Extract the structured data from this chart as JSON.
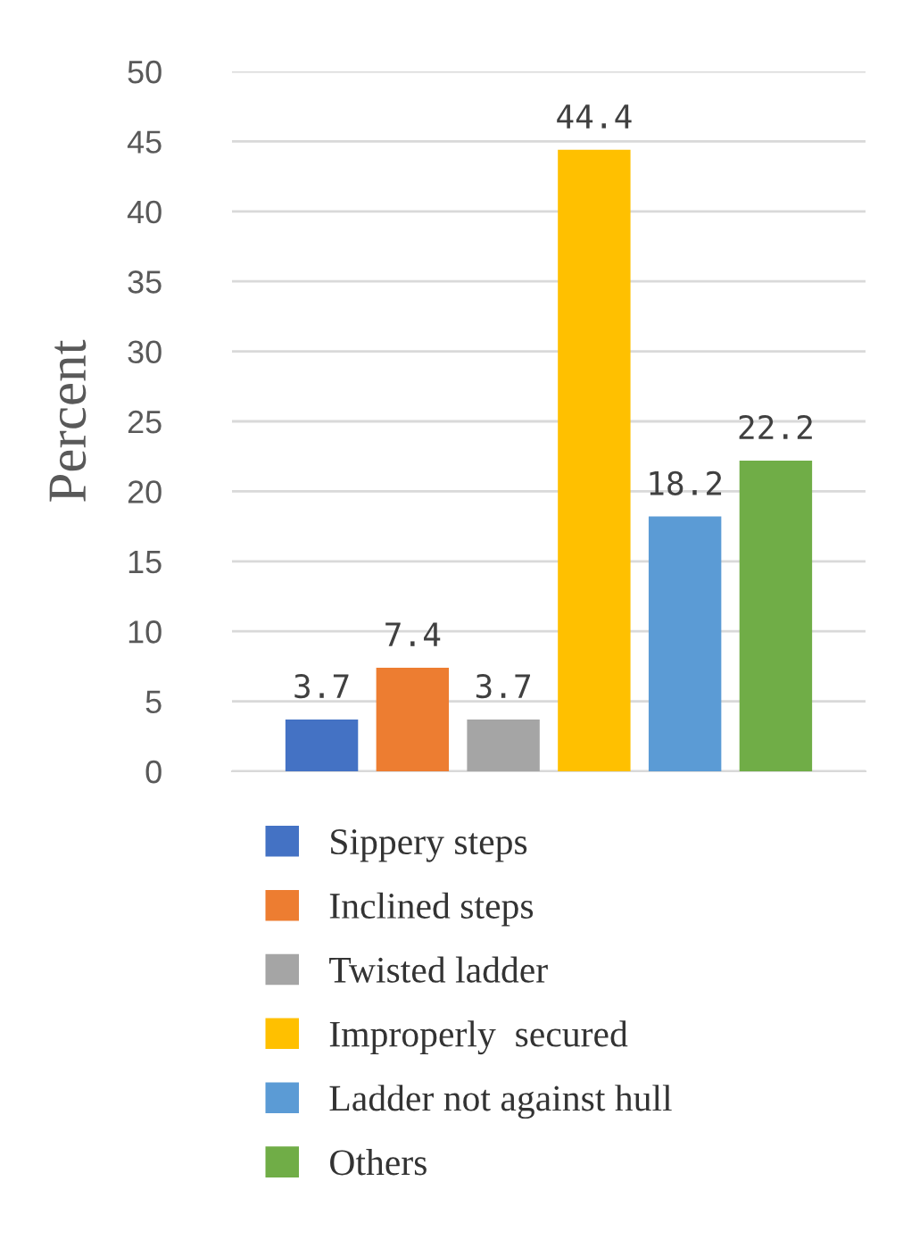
{
  "chart_data": {
    "type": "bar",
    "ylabel": "Percent",
    "categories": [
      null
    ],
    "ylim": [
      0,
      50
    ],
    "yticks": [
      0,
      5,
      10,
      15,
      20,
      25,
      30,
      35,
      40,
      45,
      50
    ],
    "grid": "y",
    "legend": "bottom",
    "data_labels": true,
    "series": [
      {
        "name": "Sippery steps",
        "color": "#4472c4",
        "values": [
          3.7
        ]
      },
      {
        "name": "Inclined steps",
        "color": "#ed7d31",
        "values": [
          7.4
        ]
      },
      {
        "name": "Twisted ladder",
        "color": "#a5a5a5",
        "values": [
          3.7
        ]
      },
      {
        "name": "Improperly  secured",
        "color": "#ffc000",
        "values": [
          44.4
        ]
      },
      {
        "name": "Ladder not against hull",
        "color": "#5b9bd5",
        "values": [
          18.2
        ]
      },
      {
        "name": "Others",
        "color": "#70ad47",
        "values": [
          22.2
        ]
      }
    ]
  }
}
